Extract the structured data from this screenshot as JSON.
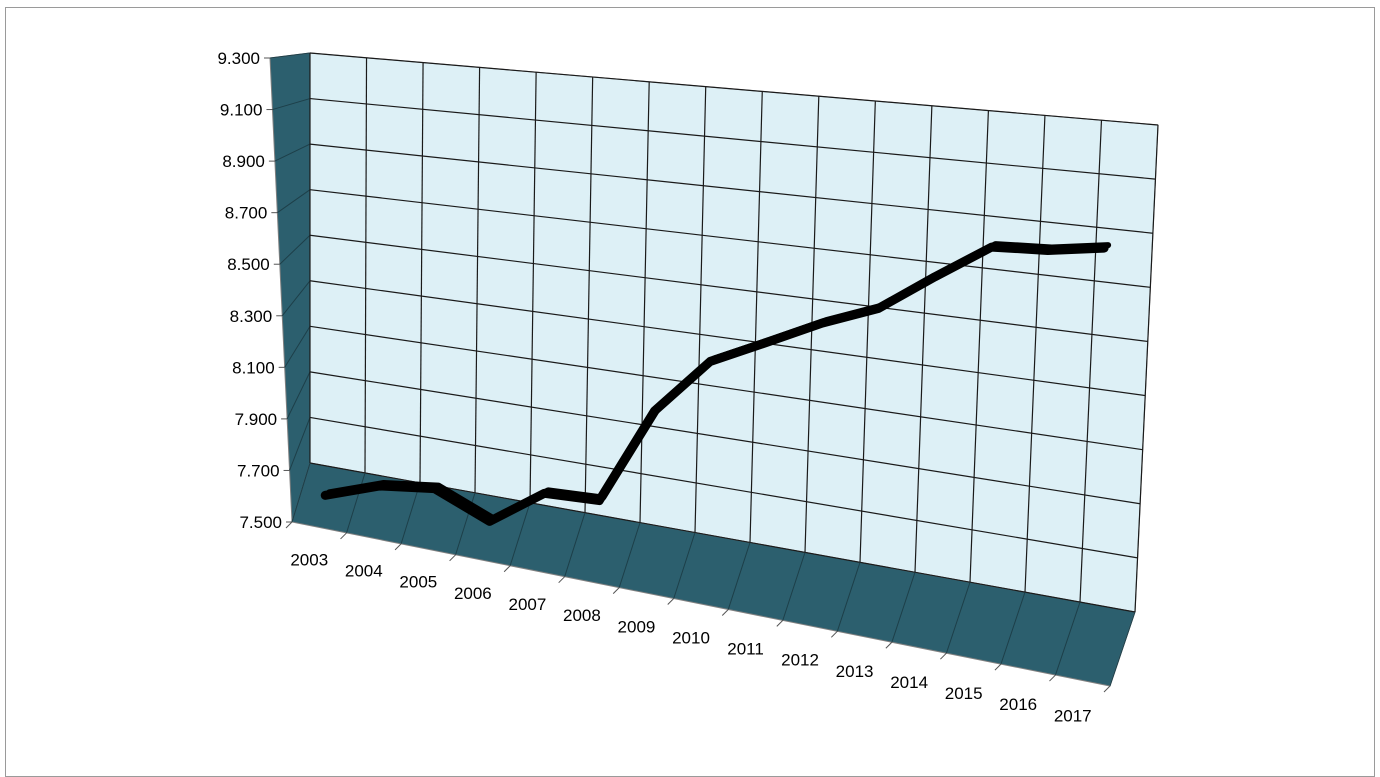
{
  "chart_data": {
    "type": "line",
    "title": "",
    "xlabel": "",
    "ylabel": "",
    "categories": [
      "2003",
      "2004",
      "2005",
      "2006",
      "2007",
      "2008",
      "2009",
      "2010",
      "2011",
      "2012",
      "2013",
      "2014",
      "2015",
      "2016",
      "2017"
    ],
    "series": [
      {
        "values": [
          7.51,
          7.59,
          7.62,
          7.53,
          7.68,
          7.69,
          8.07,
          8.29,
          8.39,
          8.49,
          8.57,
          8.71,
          8.84,
          8.85,
          8.88
        ]
      }
    ],
    "ylim": [
      7.5,
      9.3
    ],
    "yticks": [
      "7.500",
      "7.700",
      "7.900",
      "8.100",
      "8.300",
      "8.500",
      "8.700",
      "8.900",
      "9.100",
      "9.300"
    ],
    "grid": true,
    "style": "3d",
    "colors": {
      "wall": "#ddf0f6",
      "wall_side": "#2c5f6e",
      "grid": "#1a1a1a",
      "line": "#000000"
    }
  }
}
